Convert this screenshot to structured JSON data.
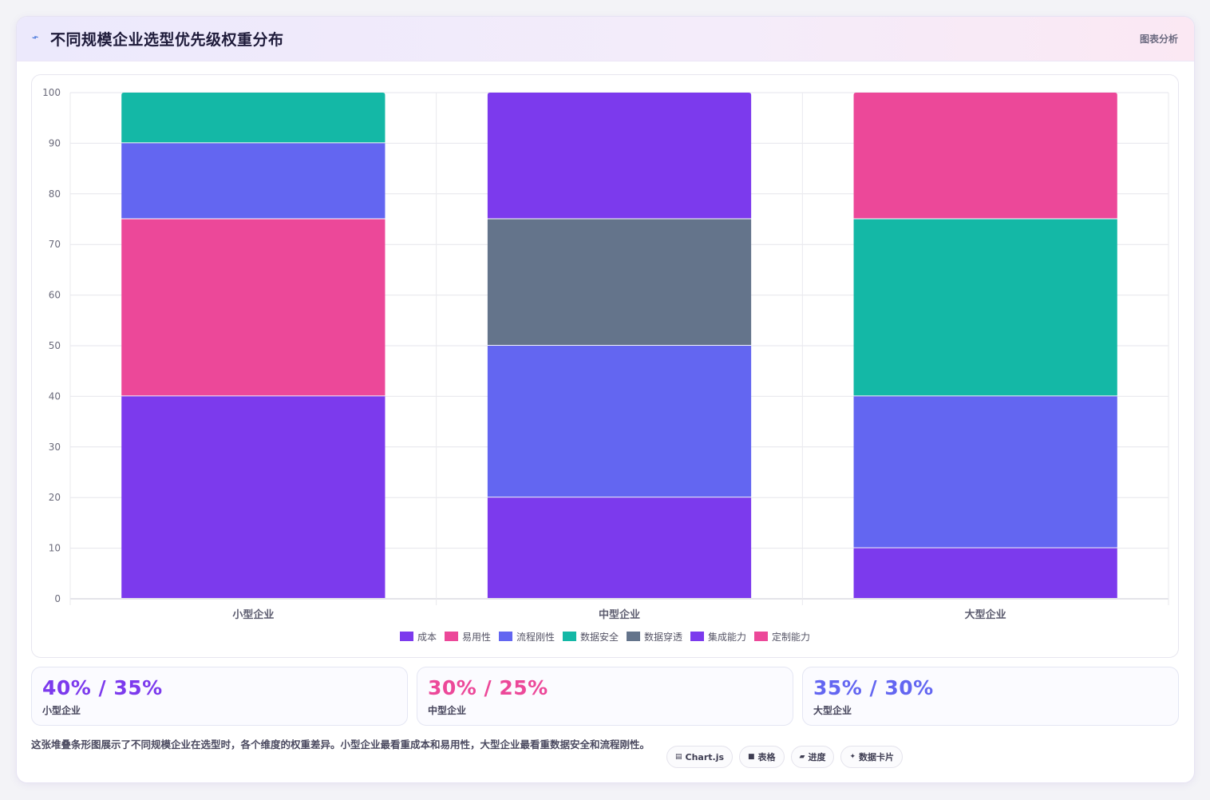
{
  "header": {
    "icon": "trend-line-icon",
    "title": "不同规模企业选型优先级权重分布",
    "tag": "图表分析"
  },
  "chart_data": {
    "type": "bar",
    "stacked": true,
    "categories": [
      "小型企业",
      "中型企业",
      "大型企业"
    ],
    "ylim": [
      0,
      100
    ],
    "yticks": [
      0,
      10,
      20,
      30,
      40,
      50,
      60,
      70,
      80,
      90,
      100
    ],
    "grid": true,
    "legend_position": "bottom",
    "series": [
      {
        "name": "成本",
        "color": "#7c3aed",
        "values": [
          40,
          20,
          10
        ]
      },
      {
        "name": "易用性",
        "color": "#ec4899",
        "values": [
          35,
          0,
          0
        ]
      },
      {
        "name": "流程刚性",
        "color": "#6366f1",
        "values": [
          15,
          30,
          30
        ]
      },
      {
        "name": "数据安全",
        "color": "#14b8a6",
        "values": [
          10,
          0,
          35
        ]
      },
      {
        "name": "数据穿透",
        "color": "#64748b",
        "values": [
          0,
          25,
          0
        ]
      },
      {
        "name": "集成能力",
        "color": "#7c3aed",
        "values": [
          0,
          25,
          0
        ]
      },
      {
        "name": "定制能力",
        "color": "#ec4899",
        "values": [
          0,
          0,
          25
        ]
      }
    ]
  },
  "stats": [
    {
      "value": "40% / 35%",
      "label": "小型企业",
      "color": "#7c3aed"
    },
    {
      "value": "30% / 25%",
      "label": "中型企业",
      "color": "#ec4899"
    },
    {
      "value": "35% / 30%",
      "label": "大型企业",
      "color": "#6366f1"
    }
  ],
  "footer": {
    "description": "这张堆叠条形图展示了不同规模企业在选型时，各个维度的权重差异。小型企业最看重成本和易用性，大型企业最看重数据安全和流程刚性。",
    "chips": [
      {
        "icon": "chart-icon",
        "glyph": "▤",
        "label": "Chart.js"
      },
      {
        "icon": "table-icon",
        "glyph": "■",
        "label": "表格"
      },
      {
        "icon": "progress-icon",
        "glyph": "▰",
        "label": "进度"
      },
      {
        "icon": "sparkle-icon",
        "glyph": "✦",
        "label": "数据卡片"
      }
    ]
  }
}
